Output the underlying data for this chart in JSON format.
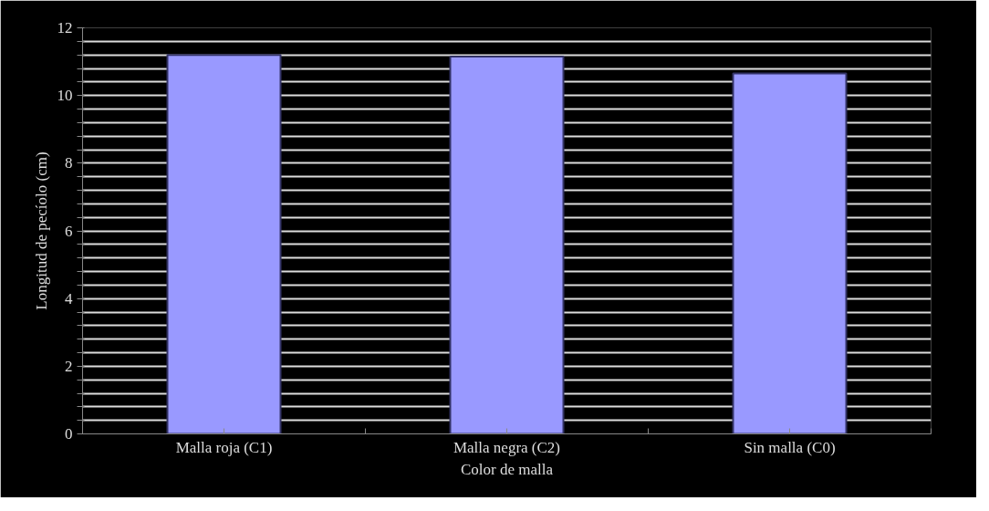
{
  "chart_data": {
    "type": "bar",
    "xlabel": "Color de malla",
    "ylabel": "Longitud de pecíolo (cm)",
    "categories": [
      "Malla roja (C1)",
      "Malla negra (C2)",
      "Sin malla (C0)"
    ],
    "values": [
      11.2,
      11.15,
      10.65
    ],
    "color": "#9999ff",
    "ylim": [
      0,
      12
    ],
    "yticks": [
      0,
      {
        "value": 0.4,
        "label": null
      },
      {
        "value": 0.8,
        "label": null
      },
      {
        "value": 1.2,
        "label": null
      },
      {
        "value": 1.6,
        "label": null
      },
      2,
      {
        "value": 2.4,
        "label": null
      },
      {
        "value": 2.8,
        "label": null
      },
      {
        "value": 3.2,
        "label": null
      },
      {
        "value": 3.6,
        "label": null
      },
      4,
      {
        "value": 4.4,
        "label": null
      },
      {
        "value": 4.8,
        "label": null
      },
      {
        "value": 5.2,
        "label": null
      },
      {
        "value": 5.6,
        "label": null
      },
      6,
      {
        "value": 6.4,
        "label": null
      },
      {
        "value": 6.8,
        "label": null
      },
      {
        "value": 7.2,
        "label": null
      },
      {
        "value": 7.6,
        "label": null
      },
      8,
      {
        "value": 8.4,
        "label": null
      },
      {
        "value": 8.8,
        "label": null
      },
      {
        "value": 9.2,
        "label": null
      },
      {
        "value": 9.6,
        "label": null
      },
      10,
      {
        "value": 10.4,
        "label": null
      },
      {
        "value": 10.8,
        "label": null
      },
      {
        "value": 11.2,
        "label": null
      },
      {
        "value": 11.6,
        "label": null
      },
      12
    ],
    "grid": "y"
  }
}
